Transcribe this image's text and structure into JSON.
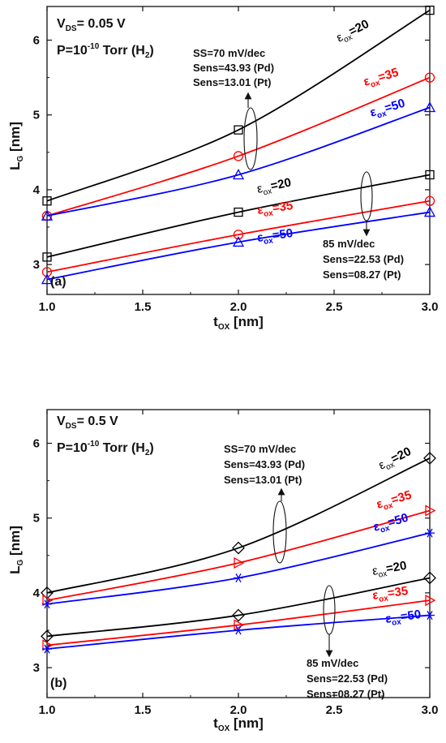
{
  "chart_data": [
    {
      "type": "line",
      "panel_tag": "(a)",
      "xlabel": "tOX [nm]",
      "xlabel_main": "t",
      "xlabel_sub": "OX",
      "xlabel_unit": " [nm]",
      "ylabel": "LG [nm]",
      "ylabel_main": "L",
      "ylabel_sub": "G",
      "ylabel_unit": " [nm]",
      "xlim": [
        1.0,
        3.0
      ],
      "ylim": [
        2.6,
        6.45
      ],
      "x_ticks": [
        "1.0",
        "1.5",
        "2.0",
        "2.5",
        "3.0"
      ],
      "y_ticks": [
        "3",
        "4",
        "5",
        "6"
      ],
      "x_tick_values": [
        1.0,
        1.5,
        2.0,
        2.5,
        3.0
      ],
      "y_tick_values": [
        3,
        4,
        5,
        6
      ],
      "condition_lines": [
        {
          "main": "V",
          "sub": "DS",
          "rest": "= 0.05 V"
        },
        {
          "main": "P=10",
          "sup": "-10",
          "rest": " Torr (H",
          "sub2": "2",
          "tail": ")"
        }
      ],
      "annotations": {
        "upper": [
          "SS=70 mV/dec",
          "Sens=43.93 (Pd)",
          "Sens=13.01 (Pt)"
        ],
        "lower": [
          "85 mV/dec",
          "Sens=22.53 (Pd)",
          "Sens=08.27 (Pt)"
        ]
      },
      "series": [
        {
          "label_main": "ε",
          "label_sub": "ox",
          "label_val": "=20",
          "color": "#000000",
          "marker": "square",
          "group": "SS=70 mV/dec",
          "x": [
            1.0,
            2.0,
            3.0
          ],
          "y": [
            3.85,
            4.8,
            6.4
          ]
        },
        {
          "label_main": "ε",
          "label_sub": "ox",
          "label_val": "=35",
          "color": "#ff0000",
          "marker": "circle",
          "group": "SS=70 mV/dec",
          "x": [
            1.0,
            2.0,
            3.0
          ],
          "y": [
            3.65,
            4.45,
            5.5
          ]
        },
        {
          "label_main": "ε",
          "label_sub": "ox",
          "label_val": "=50",
          "color": "#0000ff",
          "marker": "triangle",
          "group": "SS=70 mV/dec",
          "x": [
            1.0,
            2.0,
            3.0
          ],
          "y": [
            3.65,
            4.2,
            5.1
          ]
        },
        {
          "label_main": "ε",
          "label_sub": "ox",
          "label_val": "=20",
          "color": "#000000",
          "marker": "square",
          "group": "85 mV/dec",
          "x": [
            1.0,
            2.0,
            3.0
          ],
          "y": [
            3.1,
            3.7,
            4.2
          ]
        },
        {
          "label_main": "ε",
          "label_sub": "ox",
          "label_val": "=35",
          "color": "#ff0000",
          "marker": "circle",
          "group": "85 mV/dec",
          "x": [
            1.0,
            2.0,
            3.0
          ],
          "y": [
            2.9,
            3.4,
            3.85
          ]
        },
        {
          "label_main": "ε",
          "label_sub": "ox",
          "label_val": "=50",
          "color": "#0000ff",
          "marker": "triangle",
          "group": "85 mV/dec",
          "x": [
            1.0,
            2.0,
            3.0
          ],
          "y": [
            2.8,
            3.3,
            3.7
          ]
        }
      ]
    },
    {
      "type": "line",
      "panel_tag": "(b)",
      "xlabel": "tOX [nm]",
      "xlabel_main": "t",
      "xlabel_sub": "OX",
      "xlabel_unit": " [nm]",
      "ylabel": "LG [nm]",
      "ylabel_main": "L",
      "ylabel_sub": "G",
      "ylabel_unit": " [nm]",
      "xlim": [
        1.0,
        3.0
      ],
      "ylim": [
        2.6,
        6.45
      ],
      "x_ticks": [
        "1.0",
        "1.5",
        "2.0",
        "2.5",
        "3.0"
      ],
      "y_ticks": [
        "3",
        "4",
        "5",
        "6"
      ],
      "x_tick_values": [
        1.0,
        1.5,
        2.0,
        2.5,
        3.0
      ],
      "y_tick_values": [
        3,
        4,
        5,
        6
      ],
      "condition_lines": [
        {
          "main": "V",
          "sub": "DS",
          "rest": "= 0.5 V"
        },
        {
          "main": "P=10",
          "sup": "-10",
          "rest": " Torr (H",
          "sub2": "2",
          "tail": ")"
        }
      ],
      "annotations": {
        "upper": [
          "SS=70 mV/dec",
          "Sens=43.93 (Pd)",
          "Sens=13.01 (Pt)"
        ],
        "lower": [
          "85 mV/dec",
          "Sens=22.53 (Pd)",
          "Sens=08.27 (Pt)"
        ]
      },
      "series": [
        {
          "label_main": "ε",
          "label_sub": "ox",
          "label_val": "=20",
          "color": "#000000",
          "marker": "diamond",
          "group": "SS=70 mV/dec",
          "x": [
            1.0,
            2.0,
            3.0
          ],
          "y": [
            4.0,
            4.6,
            5.8
          ]
        },
        {
          "label_main": "ε",
          "label_sub": "ox",
          "label_val": "=35",
          "color": "#ff0000",
          "marker": "triangle-right",
          "group": "SS=70 mV/dec",
          "x": [
            1.0,
            2.0,
            3.0
          ],
          "y": [
            3.9,
            4.4,
            5.1
          ]
        },
        {
          "label_main": "ε",
          "label_sub": "ox",
          "label_val": "=50",
          "color": "#0000ff",
          "marker": "asterisk",
          "group": "SS=70 mV/dec",
          "x": [
            1.0,
            2.0,
            3.0
          ],
          "y": [
            3.85,
            4.2,
            4.8
          ]
        },
        {
          "label_main": "ε",
          "label_sub": "ox",
          "label_val": "=20",
          "color": "#000000",
          "marker": "diamond",
          "group": "85 mV/dec",
          "x": [
            1.0,
            2.0,
            3.0
          ],
          "y": [
            3.42,
            3.7,
            4.2
          ]
        },
        {
          "label_main": "ε",
          "label_sub": "ox",
          "label_val": "=35",
          "color": "#ff0000",
          "marker": "triangle-right",
          "group": "85 mV/dec",
          "x": [
            1.0,
            2.0,
            3.0
          ],
          "y": [
            3.3,
            3.57,
            3.9
          ]
        },
        {
          "label_main": "ε",
          "label_sub": "ox",
          "label_val": "=50",
          "color": "#0000ff",
          "marker": "asterisk",
          "group": "85 mV/dec",
          "x": [
            1.0,
            2.0,
            3.0
          ],
          "y": [
            3.25,
            3.5,
            3.7
          ]
        }
      ]
    }
  ]
}
